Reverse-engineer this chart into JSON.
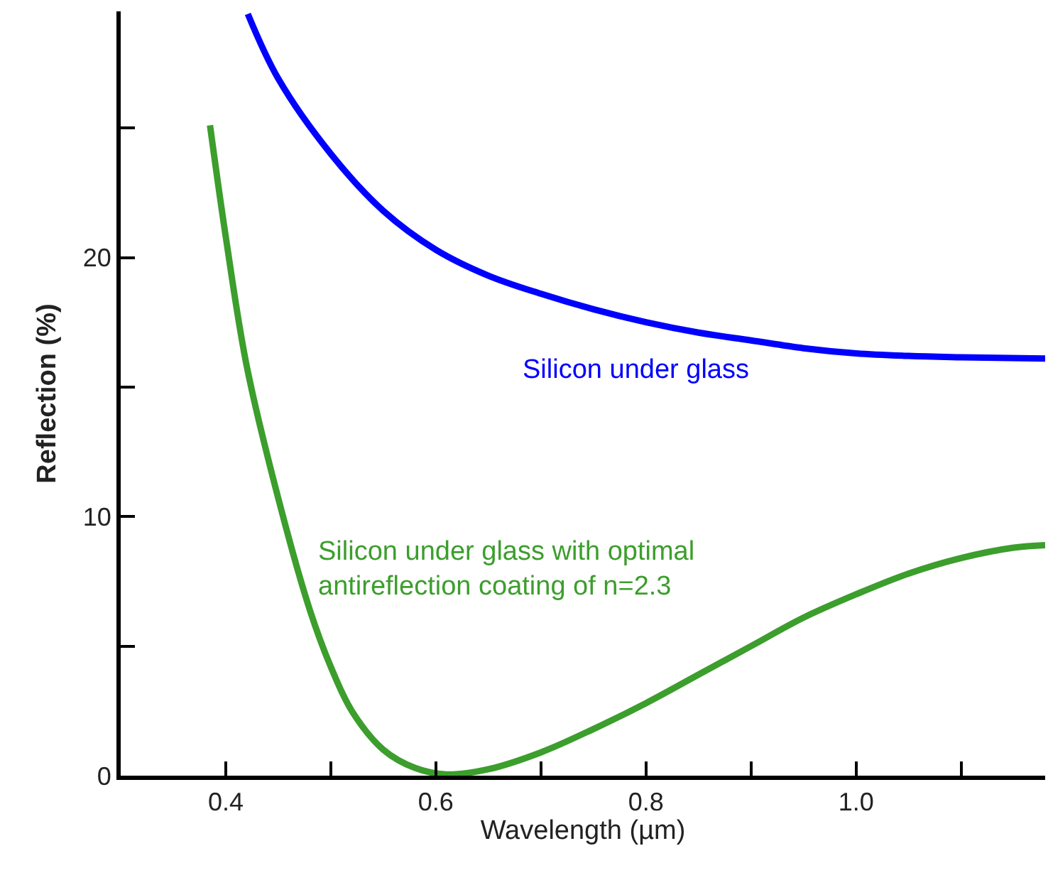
{
  "chart_data": {
    "type": "line",
    "xlabel": "Wavelength (µm)",
    "ylabel": "Reflection (%)",
    "xlim": [
      0.3,
      1.18
    ],
    "ylim": [
      0,
      29.5
    ],
    "xticks": [
      0.4,
      {
        "value": 0.5,
        "label": null
      },
      0.6,
      {
        "value": 0.7,
        "label": null
      },
      0.8,
      {
        "value": 0.9,
        "label": null
      },
      {
        "value": 1.0,
        "label": "1.0"
      },
      {
        "value": 1.1,
        "label": null
      }
    ],
    "yticks": [
      0,
      {
        "value": 5,
        "label": null
      },
      10,
      {
        "value": 15,
        "label": null
      },
      20,
      {
        "value": 25,
        "label": null
      }
    ],
    "legend": false,
    "marker": "none",
    "line_style": "solid",
    "series": [
      {
        "name": "Silicon under glass",
        "color": "#0000ff",
        "x": [
          0.421,
          0.45,
          0.5,
          0.55,
          0.6,
          0.65,
          0.7,
          0.75,
          0.8,
          0.85,
          0.9,
          0.95,
          1.0,
          1.05,
          1.1,
          1.18
        ],
        "values": [
          29.4,
          26.9,
          24.0,
          21.8,
          20.3,
          19.3,
          18.6,
          18.0,
          17.5,
          17.1,
          16.8,
          16.5,
          16.3,
          16.2,
          16.15,
          16.1
        ]
      },
      {
        "name": "Silicon under glass with optimal\nantireflection coating of n=2.3",
        "color": "#3c9e2c",
        "x": [
          0.385,
          0.4,
          0.42,
          0.45,
          0.48,
          0.5,
          0.52,
          0.55,
          0.58,
          0.61,
          0.65,
          0.7,
          0.75,
          0.8,
          0.85,
          0.9,
          0.95,
          1.0,
          1.05,
          1.1,
          1.15,
          1.18
        ],
        "values": [
          25.1,
          20.8,
          15.8,
          10.7,
          6.4,
          4.2,
          2.5,
          1.0,
          0.3,
          0.05,
          0.25,
          0.9,
          1.8,
          2.8,
          3.9,
          5.0,
          6.1,
          7.0,
          7.8,
          8.4,
          8.8,
          8.9
        ]
      }
    ]
  }
}
